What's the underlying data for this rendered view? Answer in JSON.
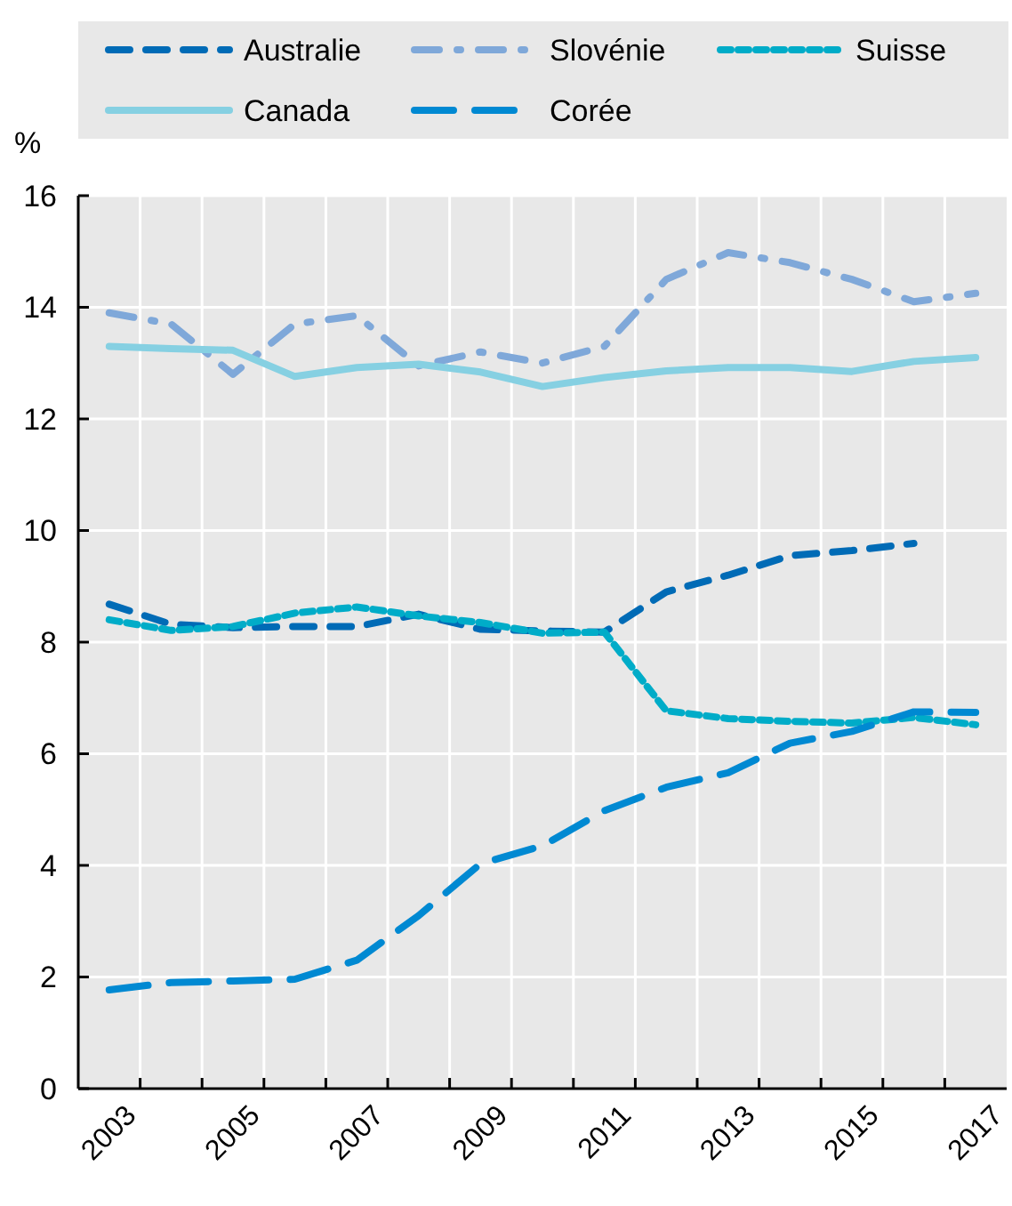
{
  "chart_data": {
    "type": "line",
    "ylabel": "%",
    "categories": [
      "2003",
      null,
      "2005",
      null,
      "2007",
      null,
      "2009",
      null,
      "2011",
      null,
      "2013",
      null,
      "2015",
      null,
      "2017"
    ],
    "ylim": [
      0,
      16
    ],
    "yticks": [
      0,
      2,
      4,
      6,
      8,
      10,
      12,
      14,
      16
    ],
    "grid": true,
    "legend": "top",
    "marker": "none",
    "series": [
      {
        "name": "Australie",
        "color": "#006bb6",
        "line_style": "dashed",
        "values": [
          8.68,
          8.32,
          8.26,
          8.28,
          8.28,
          8.5,
          8.23,
          8.2,
          8.18,
          8.9,
          9.2,
          9.55,
          9.64,
          9.77,
          null
        ]
      },
      {
        "name": "Slovénie",
        "color": "#7fa8d9",
        "line_style": "dashdot",
        "values": [
          13.9,
          13.7,
          12.8,
          13.7,
          13.85,
          12.95,
          13.2,
          13.0,
          13.3,
          14.5,
          14.98,
          14.8,
          14.5,
          14.1,
          14.25
        ]
      },
      {
        "name": "Suisse",
        "color": "#00acc8",
        "line_style": "dotted",
        "values": [
          8.4,
          8.21,
          8.28,
          8.52,
          8.63,
          8.47,
          8.35,
          8.16,
          8.18,
          6.77,
          6.63,
          6.58,
          6.55,
          6.65,
          6.52
        ]
      },
      {
        "name": "Canada",
        "color": "#86d0e2",
        "line_style": "solid",
        "values": [
          13.3,
          13.26,
          13.23,
          12.76,
          12.92,
          12.98,
          12.84,
          12.58,
          12.74,
          12.86,
          12.92,
          12.92,
          12.85,
          13.03,
          13.1
        ]
      },
      {
        "name": "Corée",
        "color": "#0089d2",
        "line_style": "longdash",
        "values": [
          1.77,
          1.9,
          1.93,
          1.96,
          2.3,
          3.1,
          4.03,
          4.35,
          4.98,
          5.4,
          5.66,
          6.19,
          6.4,
          6.75,
          6.74
        ]
      }
    ]
  }
}
